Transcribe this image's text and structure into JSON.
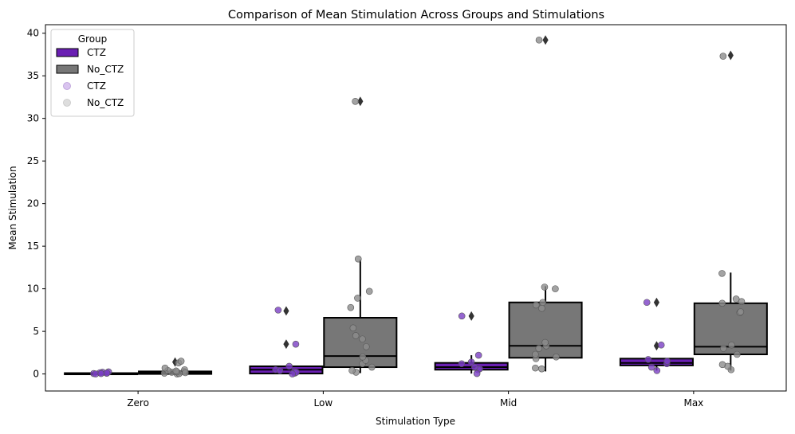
{
  "chart_data": {
    "type": "box",
    "title": "Comparison of Mean Stimulation Across Groups and Stimulations",
    "xlabel": "Stimulation Type",
    "ylabel": "Mean Stimulation",
    "categories": [
      "Zero",
      "Low",
      "Mid",
      "Max"
    ],
    "ylim": [
      -2,
      41
    ],
    "yticks": [
      0,
      5,
      10,
      15,
      20,
      25,
      30,
      35,
      40
    ],
    "grid": false,
    "legend": {
      "title": "Group",
      "placement": "top-left",
      "box_entries": [
        "CTZ",
        "No_CTZ"
      ],
      "point_entries": [
        "CTZ",
        "No_CTZ"
      ]
    },
    "colors": {
      "CTZ": "#6a1fb3",
      "No_CTZ": "#777777",
      "CTZ_points": "#7b3fc4",
      "No_CTZ_points": "#8c8c8c"
    },
    "series": [
      {
        "name": "CTZ",
        "boxes": [
          {
            "q1": 0.0,
            "median": 0.05,
            "q3": 0.1,
            "whislo": 0.0,
            "whishi": 0.2,
            "fliers": []
          },
          {
            "q1": 0.05,
            "median": 0.5,
            "q3": 0.9,
            "whislo": 0.0,
            "whishi": 1.0,
            "fliers": [
              3.5,
              7.4
            ]
          },
          {
            "q1": 0.5,
            "median": 0.8,
            "q3": 1.3,
            "whislo": 0.05,
            "whishi": 2.2,
            "fliers": [
              6.8
            ]
          },
          {
            "q1": 1.0,
            "median": 1.3,
            "q3": 1.8,
            "whislo": 0.4,
            "whishi": 1.8,
            "fliers": [
              3.3,
              8.4
            ]
          }
        ],
        "points": [
          [
            0.05,
            0.1,
            0.2,
            0.15,
            0.0,
            0.25,
            0.1,
            0.05
          ],
          [
            0.1,
            0.3,
            0.5,
            0.9,
            0.2,
            0.4,
            0.0,
            7.5,
            3.5
          ],
          [
            0.5,
            0.6,
            0.8,
            1.2,
            1.4,
            2.2,
            0.05,
            6.8
          ],
          [
            0.4,
            0.8,
            1.2,
            1.5,
            1.7,
            3.4,
            8.4
          ]
        ]
      },
      {
        "name": "No_CTZ",
        "boxes": [
          {
            "q1": 0.0,
            "median": 0.15,
            "q3": 0.3,
            "whislo": 0.0,
            "whishi": 0.6,
            "fliers": [
              1.4
            ]
          },
          {
            "q1": 0.8,
            "median": 2.1,
            "q3": 6.6,
            "whislo": 0.1,
            "whishi": 13.4,
            "fliers": [
              32.0
            ]
          },
          {
            "q1": 1.9,
            "median": 3.3,
            "q3": 8.4,
            "whislo": 0.3,
            "whishi": 10.3,
            "fliers": [
              39.2
            ]
          },
          {
            "q1": 2.3,
            "median": 3.2,
            "q3": 8.3,
            "whislo": 0.4,
            "whishi": 11.9,
            "fliers": [
              37.4
            ]
          }
        ],
        "points": [
          [
            0.0,
            0.1,
            0.2,
            0.3,
            0.4,
            0.5,
            1.3,
            1.5,
            0.7,
            0.05,
            0.15,
            0.25,
            0.35
          ],
          [
            0.2,
            0.4,
            0.8,
            1.2,
            1.6,
            2.0,
            3.2,
            4.1,
            4.5,
            5.4,
            7.8,
            8.9,
            9.7,
            13.5,
            32.0
          ],
          [
            0.6,
            0.7,
            1.8,
            2.0,
            2.3,
            3.0,
            3.3,
            3.7,
            7.7,
            8.1,
            8.4,
            10.0,
            10.2,
            39.2
          ],
          [
            0.5,
            0.9,
            1.1,
            2.3,
            3.0,
            3.4,
            7.2,
            7.3,
            8.3,
            8.5,
            8.8,
            11.8,
            37.3
          ]
        ]
      }
    ]
  }
}
